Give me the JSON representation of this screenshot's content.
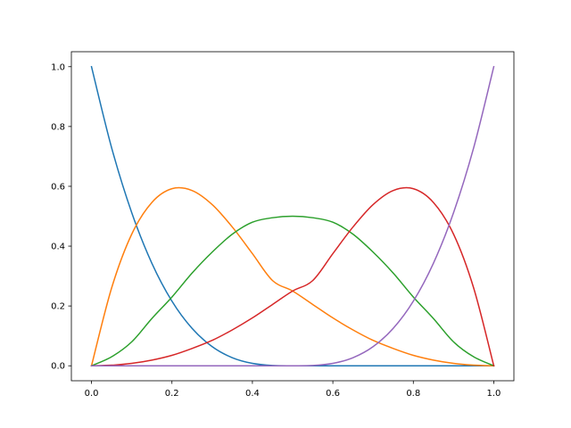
{
  "chart_data": {
    "type": "line",
    "title": "",
    "xlabel": "",
    "ylabel": "",
    "xlim": [
      -0.05,
      1.05
    ],
    "ylim": [
      -0.05,
      1.05
    ],
    "grid": false,
    "legend": "none",
    "x_ticks": [
      0.0,
      0.2,
      0.4,
      0.6,
      0.8,
      1.0
    ],
    "y_ticks": [
      0.0,
      0.2,
      0.4,
      0.6,
      0.8,
      1.0
    ],
    "x_tick_labels": [
      "0.0",
      "0.2",
      "0.4",
      "0.6",
      "0.8",
      "1.0"
    ],
    "y_tick_labels": [
      "0.0",
      "0.2",
      "0.4",
      "0.6",
      "0.8",
      "1.0"
    ],
    "x": [
      0.0,
      0.05,
      0.1,
      0.15,
      0.2,
      0.25,
      0.3,
      0.35,
      0.4,
      0.45,
      0.5,
      0.55,
      0.6,
      0.65,
      0.7,
      0.75,
      0.8,
      0.85,
      0.9,
      0.95,
      1.0
    ],
    "series": [
      {
        "color": "#1f77b4",
        "values": [
          1.0,
          0.729,
          0.512,
          0.343,
          0.216,
          0.125,
          0.064,
          0.027,
          0.008,
          0.001,
          0.0,
          0.0,
          0.0,
          0.0,
          0.0,
          0.0,
          0.0,
          0.0,
          0.0,
          0.0,
          0.0
        ]
      },
      {
        "color": "#ff7f0e",
        "values": [
          0.0,
          0.26,
          0.44,
          0.546,
          0.592,
          0.586,
          0.539,
          0.464,
          0.375,
          0.285,
          0.25,
          0.205,
          0.16,
          0.12,
          0.085,
          0.058,
          0.035,
          0.019,
          0.008,
          0.002,
          0.0
        ]
      },
      {
        "color": "#2ca02c",
        "values": [
          0.0,
          0.03,
          0.08,
          0.158,
          0.23,
          0.31,
          0.38,
          0.44,
          0.48,
          0.495,
          0.5,
          0.495,
          0.48,
          0.44,
          0.38,
          0.31,
          0.23,
          0.158,
          0.08,
          0.03,
          0.0
        ]
      },
      {
        "color": "#d62728",
        "values": [
          0.0,
          0.002,
          0.008,
          0.019,
          0.035,
          0.058,
          0.085,
          0.12,
          0.16,
          0.205,
          0.25,
          0.285,
          0.375,
          0.464,
          0.539,
          0.586,
          0.592,
          0.546,
          0.44,
          0.26,
          0.0
        ]
      },
      {
        "color": "#9467bd",
        "values": [
          0.0,
          0.0,
          0.0,
          0.0,
          0.0,
          0.0,
          0.0,
          0.0,
          0.0,
          0.0,
          0.0,
          0.001,
          0.008,
          0.027,
          0.064,
          0.125,
          0.216,
          0.343,
          0.512,
          0.729,
          1.0
        ]
      }
    ]
  }
}
